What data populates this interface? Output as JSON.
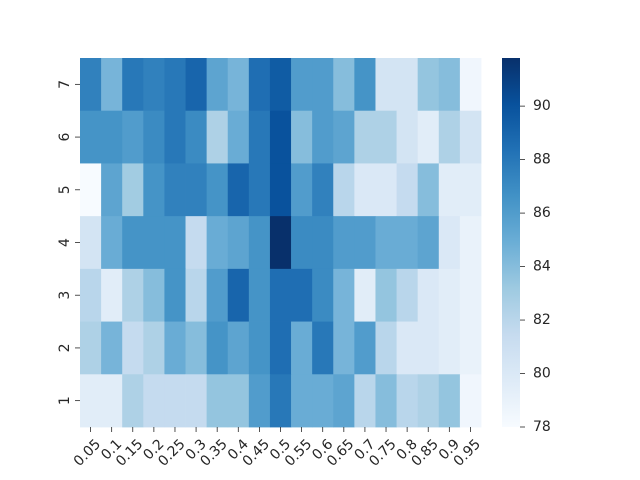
{
  "chart_data": {
    "type": "heatmap",
    "title": "",
    "xlabel": "",
    "ylabel": "",
    "x": [
      "0.05",
      "0.1",
      "0.15",
      "0.2",
      "0.25",
      "0.3",
      "0.35",
      "0.4",
      "0.45",
      "0.5",
      "0.55",
      "0.6",
      "0.65",
      "0.7",
      "0.75",
      "0.8",
      "0.85",
      "0.9",
      "0.95"
    ],
    "y": [
      "7",
      "6",
      "5",
      "4",
      "3",
      "2",
      "1"
    ],
    "values": [
      [
        87.5,
        84.5,
        88.0,
        87.5,
        88.0,
        89.0,
        85.5,
        84.5,
        88.5,
        89.5,
        86.0,
        86.0,
        84.0,
        86.5,
        80.5,
        80.5,
        83.5,
        84.0,
        78.5
      ],
      [
        86.5,
        86.5,
        86.0,
        87.0,
        88.0,
        87.0,
        82.5,
        85.0,
        88.0,
        90.0,
        84.0,
        86.0,
        85.5,
        82.5,
        82.5,
        80.5,
        79.5,
        82.5,
        80.5
      ],
      [
        78.0,
        85.5,
        83.0,
        86.5,
        87.5,
        87.5,
        86.5,
        89.0,
        88.0,
        90.0,
        86.0,
        87.5,
        82.0,
        80.0,
        80.0,
        81.5,
        84.0,
        79.5,
        79.5
      ],
      [
        80.5,
        85.0,
        86.5,
        86.5,
        86.5,
        81.5,
        85.0,
        85.5,
        86.5,
        92.0,
        87.0,
        87.0,
        86.0,
        86.0,
        85.0,
        85.0,
        85.5,
        80.0,
        79.0
      ],
      [
        82.0,
        79.5,
        82.5,
        84.0,
        86.5,
        82.0,
        86.0,
        89.0,
        86.5,
        88.5,
        88.5,
        87.0,
        84.5,
        79.5,
        83.5,
        82.0,
        80.0,
        79.5,
        79.0
      ],
      [
        82.5,
        84.5,
        81.5,
        82.5,
        85.0,
        84.0,
        86.5,
        85.5,
        86.5,
        88.5,
        85.0,
        88.0,
        84.5,
        86.0,
        82.0,
        80.0,
        80.0,
        79.5,
        79.0
      ],
      [
        79.5,
        79.5,
        82.5,
        81.5,
        81.5,
        81.5,
        83.5,
        83.5,
        86.0,
        88.0,
        85.0,
        85.0,
        85.5,
        82.0,
        84.0,
        82.0,
        82.5,
        83.5,
        78.5
      ]
    ],
    "colorbar": {
      "min": 78,
      "max": 91.8,
      "ticks": [
        "78",
        "80",
        "82",
        "84",
        "86",
        "88",
        "90"
      ],
      "colormap": "Blues",
      "low_color": "#f7fbff",
      "high_color": "#08306b"
    },
    "grid": false,
    "legend": "colorbar-right"
  }
}
